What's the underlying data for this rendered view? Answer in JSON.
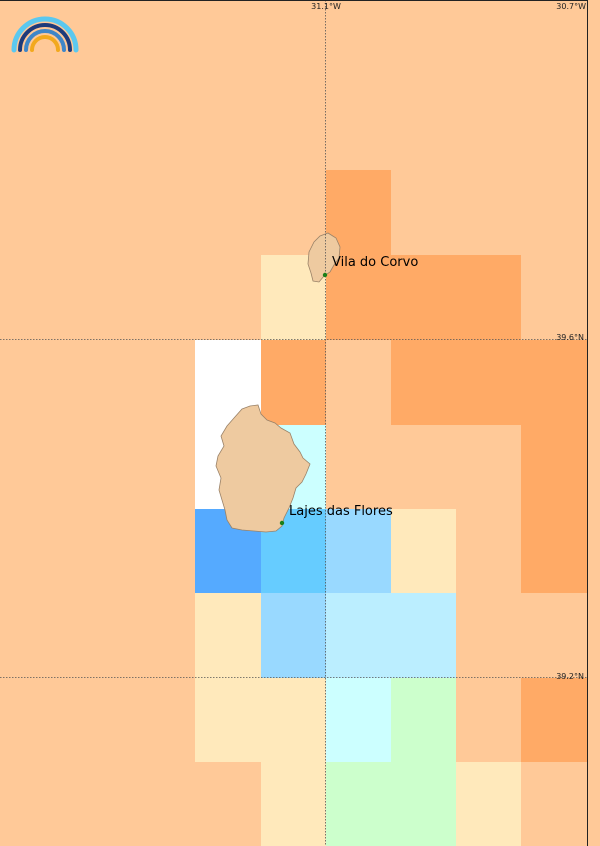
{
  "map": {
    "lon_labels": [
      "31.1°W",
      "30.7°W"
    ],
    "lat_labels": [
      "39.6°N",
      "39.2°N"
    ],
    "places": {
      "corvo": "Vila do Corvo",
      "flores": "Lajes das Flores"
    },
    "logo": "rainbow-arc-logo",
    "colors": {
      "background": "#ffc998",
      "orange": "#ffaa66",
      "pale_yellow": "#ffe9bb",
      "white": "#ffffff",
      "cyan_pale": "#ccffff",
      "blue_dark": "#55aaff",
      "blue_mid": "#66ccff",
      "blue_light": "#99d9ff",
      "blue_pale": "#bbeeff",
      "green_pale": "#ccffcc",
      "land": "#eecaa0",
      "land_edge": "#9a8268",
      "gridline": "#555555",
      "marker": "#1a7f1a"
    }
  }
}
